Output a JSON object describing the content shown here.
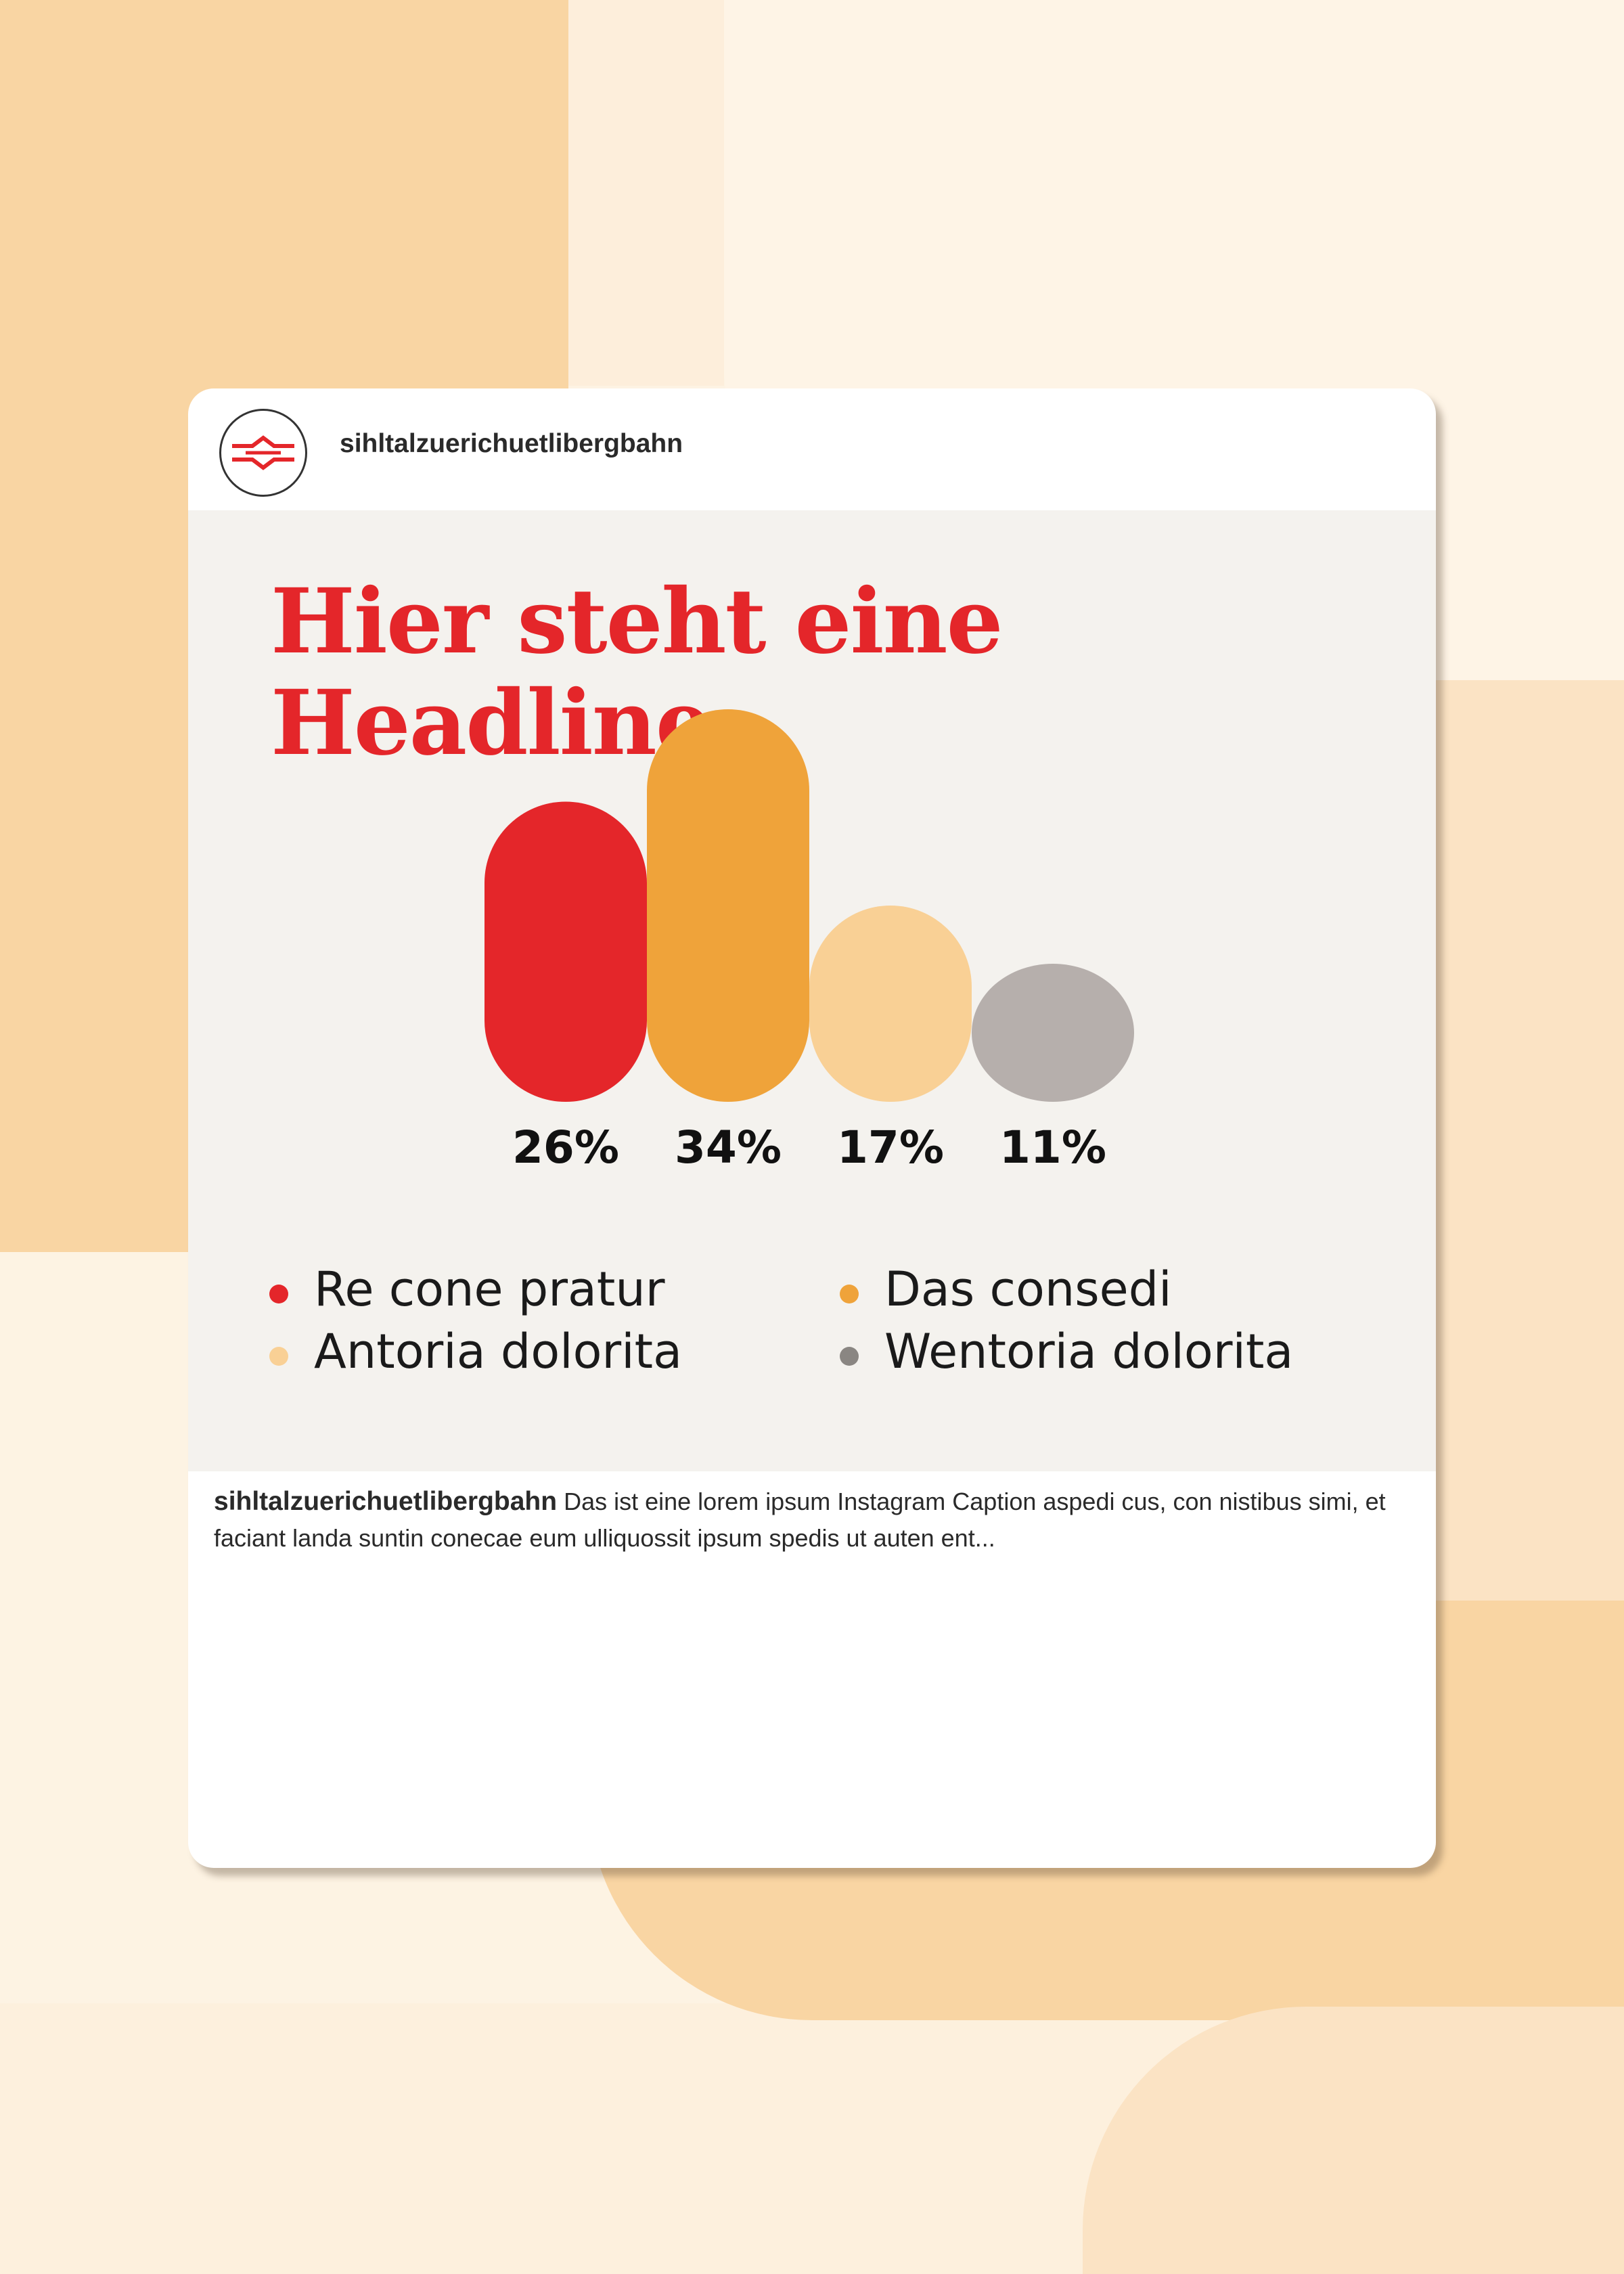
{
  "colors": {
    "red": "#e4262a",
    "orange": "#efa33a",
    "light_orange": "#f9d095",
    "grey": "#b6afac",
    "legend_grey": "#8a8682"
  },
  "header": {
    "handle": "sihltalzuerichuetlibergbahn",
    "avatar_icon": "railway-logo-icon"
  },
  "post": {
    "headline_lines": [
      "Hier steht eine",
      "Headline"
    ]
  },
  "chart_data": {
    "type": "bar",
    "categories": [
      "Re cone pratur",
      "Das consedi",
      "Antoria dolorita",
      "Wentoria dolorita"
    ],
    "values": [
      26,
      34,
      17,
      11
    ],
    "value_labels": [
      "26%",
      "34%",
      "17%",
      "11%"
    ],
    "bar_colors": [
      "#e4262a",
      "#efa33a",
      "#f9d095",
      "#b6afac"
    ],
    "ylim": [
      0,
      34
    ],
    "title": "Hier steht eine Headline",
    "xlabel": "",
    "ylabel": "",
    "legend_position": "bottom"
  },
  "legend": [
    {
      "label": "Re cone pratur",
      "color": "#e4262a"
    },
    {
      "label": "Das consedi",
      "color": "#efa33a"
    },
    {
      "label": "Antoria dolorita",
      "color": "#f9d095"
    },
    {
      "label": "Wentoria dolorita",
      "color": "#8a8682"
    }
  ],
  "caption": {
    "handle": "sihltalzuerichuetlibergbahn",
    "text": " Das ist eine lorem ipsum Instagram Caption aspedi cus, con nistibus simi, et faciant landa suntin conecae eum ulliquossit ipsum spedis ut auten ent..."
  }
}
